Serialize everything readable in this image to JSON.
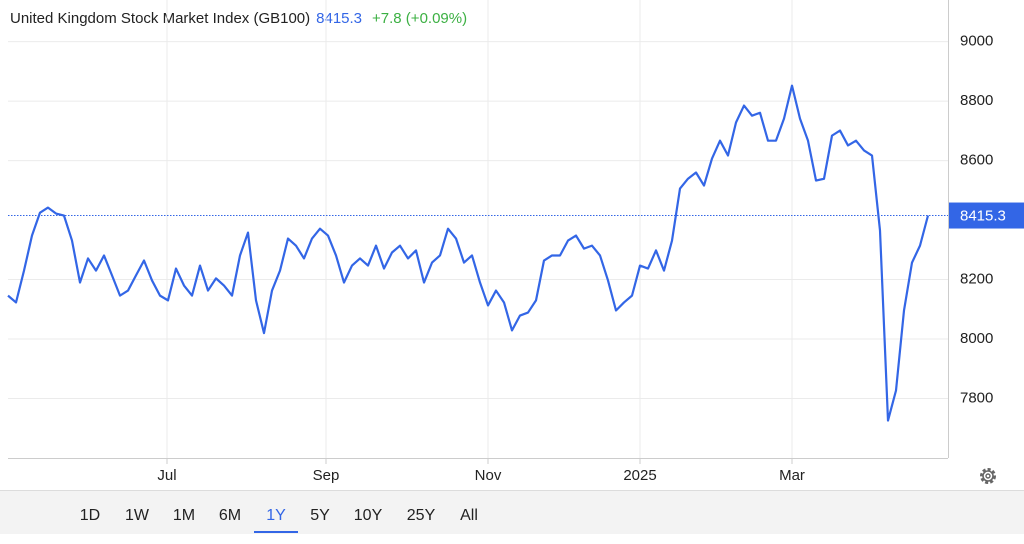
{
  "chart_data": {
    "type": "line",
    "title": "United Kingdom Stock Market Index (GB100)",
    "current_value": 8415.3,
    "change": "+7.8 (+0.09%)",
    "color": "#3366e6",
    "grid": true,
    "x": [
      0,
      1,
      2,
      3,
      4,
      5,
      6,
      7,
      8,
      9,
      10,
      11,
      12,
      13,
      14,
      15,
      16,
      17,
      18,
      19,
      20,
      21,
      22,
      23,
      24,
      25,
      26,
      27,
      28,
      29,
      30,
      31,
      32,
      33,
      34,
      35,
      36,
      37,
      38,
      39,
      40,
      41,
      42,
      43,
      44,
      45,
      46,
      47,
      48,
      49,
      50,
      51,
      52,
      53,
      54,
      55,
      56,
      57,
      58,
      59,
      60,
      61,
      62,
      63,
      64,
      65,
      66,
      67,
      68,
      69,
      70,
      71,
      72,
      73,
      74,
      75,
      76,
      77,
      78,
      79,
      80,
      81,
      82,
      83,
      84,
      85,
      86,
      87,
      88,
      89,
      90,
      91,
      92,
      93,
      94,
      95,
      96,
      97,
      98,
      99,
      100,
      101,
      102,
      103,
      104,
      105,
      106,
      107,
      108,
      109,
      110,
      111,
      112,
      113,
      114,
      115
    ],
    "series": [
      {
        "name": "GB100",
        "color": "#3366e6",
        "values": [
          8146,
          8123,
          8230,
          8348,
          8425,
          8442,
          8422,
          8415,
          8331,
          8190,
          8271,
          8230,
          8281,
          8214,
          8146,
          8163,
          8214,
          8264,
          8197,
          8146,
          8130,
          8237,
          8180,
          8146,
          8247,
          8163,
          8204,
          8180,
          8146,
          8281,
          8358,
          8130,
          8020,
          8163,
          8230,
          8338,
          8314,
          8271,
          8338,
          8371,
          8348,
          8281,
          8190,
          8247,
          8271,
          8247,
          8314,
          8237,
          8291,
          8314,
          8271,
          8298,
          8190,
          8257,
          8281,
          8371,
          8338,
          8257,
          8281,
          8190,
          8113,
          8163,
          8123,
          8029,
          8079,
          8089,
          8130,
          8264,
          8281,
          8281,
          8331,
          8348,
          8304,
          8314,
          8281,
          8197,
          8096,
          8123,
          8146,
          8247,
          8237,
          8298,
          8230,
          8331,
          8506,
          8539,
          8560,
          8516,
          8607,
          8667,
          8617,
          8728,
          8785,
          8751,
          8761,
          8667,
          8667,
          8741,
          8852,
          8741,
          8667,
          8533,
          8539,
          8684,
          8701,
          8651,
          8667,
          8634,
          8617,
          8365,
          7726,
          7827,
          8096,
          8257,
          8314,
          8415.3
        ]
      }
    ],
    "xlim": [
      0,
      117.5
    ],
    "xticks": [
      {
        "value": 19.875,
        "label": "Jul"
      },
      {
        "value": 39.75,
        "label": "Sep"
      },
      {
        "value": 60,
        "label": "Nov"
      },
      {
        "value": 79,
        "label": "2025"
      },
      {
        "value": 98,
        "label": "Mar"
      }
    ],
    "ylim": [
      7600,
      9140
    ],
    "yticks": [
      7800,
      8000,
      8200,
      8600,
      8800,
      9000
    ]
  },
  "range_buttons": [
    "1D",
    "1W",
    "1M",
    "6M",
    "1Y",
    "5Y",
    "10Y",
    "25Y",
    "All"
  ],
  "active_range": "1Y"
}
